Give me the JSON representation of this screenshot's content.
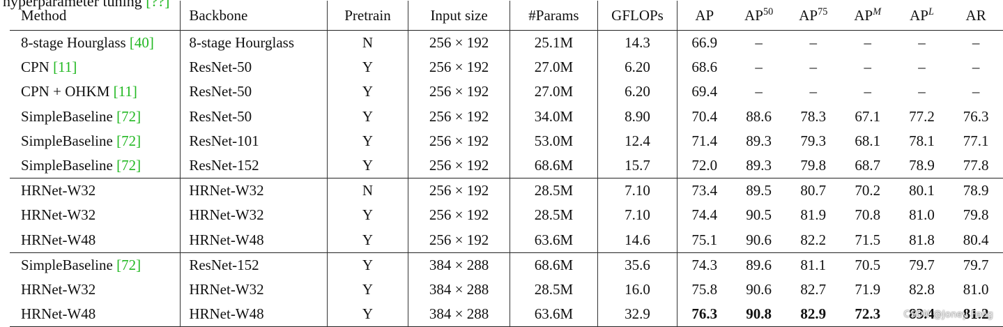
{
  "top_text": {
    "prefix": "hyperparameter tuning",
    "ref": "[??]"
  },
  "columns": {
    "method": "Method",
    "backbone": "Backbone",
    "pretrain": "Pretrain",
    "input_size": "Input size",
    "params": "#Params",
    "gflops": "GFLOPs",
    "ap": "AP",
    "ap50_base": "AP",
    "ap50_sup": "50",
    "ap75_base": "AP",
    "ap75_sup": "75",
    "apm_base": "AP",
    "apm_sup": "M",
    "apl_base": "AP",
    "apl_sup": "L",
    "ar": "AR"
  },
  "rows": [
    {
      "method": "8-stage Hourglass",
      "ref": "[40]",
      "backbone": "8-stage Hourglass",
      "pretrain": "N",
      "input": "256 × 192",
      "params": "25.1M",
      "gflops": "14.3",
      "ap": "66.9",
      "ap50": "–",
      "ap75": "–",
      "apm": "–",
      "apl": "–",
      "ar": "–"
    },
    {
      "method": "CPN",
      "ref": "[11]",
      "backbone": "ResNet-50",
      "pretrain": "Y",
      "input": "256 × 192",
      "params": "27.0M",
      "gflops": "6.20",
      "ap": "68.6",
      "ap50": "–",
      "ap75": "–",
      "apm": "–",
      "apl": "–",
      "ar": "–"
    },
    {
      "method": "CPN + OHKM",
      "ref": "[11]",
      "backbone": "ResNet-50",
      "pretrain": "Y",
      "input": "256 × 192",
      "params": "27.0M",
      "gflops": "6.20",
      "ap": "69.4",
      "ap50": "–",
      "ap75": "–",
      "apm": "–",
      "apl": "–",
      "ar": "–"
    },
    {
      "method": "SimpleBaseline",
      "ref": "[72]",
      "backbone": "ResNet-50",
      "pretrain": "Y",
      "input": "256 × 192",
      "params": "34.0M",
      "gflops": "8.90",
      "ap": "70.4",
      "ap50": "88.6",
      "ap75": "78.3",
      "apm": "67.1",
      "apl": "77.2",
      "ar": "76.3"
    },
    {
      "method": "SimpleBaseline",
      "ref": "[72]",
      "backbone": "ResNet-101",
      "pretrain": "Y",
      "input": "256 × 192",
      "params": "53.0M",
      "gflops": "12.4",
      "ap": "71.4",
      "ap50": "89.3",
      "ap75": "79.3",
      "apm": "68.1",
      "apl": "78.1",
      "ar": "77.1"
    },
    {
      "method": "SimpleBaseline",
      "ref": "[72]",
      "backbone": "ResNet-152",
      "pretrain": "Y",
      "input": "256 × 192",
      "params": "68.6M",
      "gflops": "15.7",
      "ap": "72.0",
      "ap50": "89.3",
      "ap75": "79.8",
      "apm": "68.7",
      "apl": "78.9",
      "ar": "77.8"
    },
    {
      "method": "HRNet-W32",
      "ref": "",
      "backbone": "HRNet-W32",
      "pretrain": "N",
      "input": "256 × 192",
      "params": "28.5M",
      "gflops": "7.10",
      "ap": "73.4",
      "ap50": "89.5",
      "ap75": "80.7",
      "apm": "70.2",
      "apl": "80.1",
      "ar": "78.9"
    },
    {
      "method": "HRNet-W32",
      "ref": "",
      "backbone": "HRNet-W32",
      "pretrain": "Y",
      "input": "256 × 192",
      "params": "28.5M",
      "gflops": "7.10",
      "ap": "74.4",
      "ap50": "90.5",
      "ap75": "81.9",
      "apm": "70.8",
      "apl": "81.0",
      "ar": "79.8"
    },
    {
      "method": "HRNet-W48",
      "ref": "",
      "backbone": "HRNet-W48",
      "pretrain": "Y",
      "input": "256 × 192",
      "params": "63.6M",
      "gflops": "14.6",
      "ap": "75.1",
      "ap50": "90.6",
      "ap75": "82.2",
      "apm": "71.5",
      "apl": "81.8",
      "ar": "80.4"
    },
    {
      "method": "SimpleBaseline",
      "ref": "[72]",
      "backbone": "ResNet-152",
      "pretrain": "Y",
      "input": "384 × 288",
      "params": "68.6M",
      "gflops": "35.6",
      "ap": "74.3",
      "ap50": "89.6",
      "ap75": "81.1",
      "apm": "70.5",
      "apl": "79.7",
      "ar": "79.7"
    },
    {
      "method": "HRNet-W32",
      "ref": "",
      "backbone": "HRNet-W32",
      "pretrain": "Y",
      "input": "384 × 288",
      "params": "28.5M",
      "gflops": "16.0",
      "ap": "75.8",
      "ap50": "90.6",
      "ap75": "82.7",
      "apm": "71.9",
      "apl": "82.8",
      "ar": "81.0"
    },
    {
      "method": "HRNet-W48",
      "ref": "",
      "backbone": "HRNet-W48",
      "pretrain": "Y",
      "input": "384 × 288",
      "params": "63.6M",
      "gflops": "32.9",
      "ap": "76.3",
      "ap50": "90.8",
      "ap75": "82.9",
      "apm": "72.3",
      "apl": "83.4",
      "ar": "81.2"
    }
  ],
  "watermark": "CSDN @Joney Feng"
}
